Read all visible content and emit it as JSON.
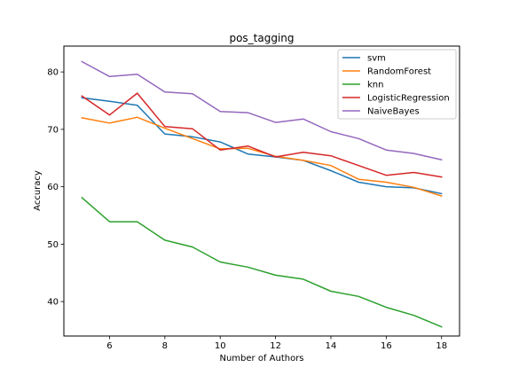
{
  "chart_data": {
    "type": "line",
    "title": "pos_tagging",
    "xlabel": "Number of Authors",
    "ylabel": "Accuracy",
    "xlim": [
      4.35,
      18.65
    ],
    "ylim": [
      34.0,
      84.5
    ],
    "xticks": [
      6,
      8,
      10,
      12,
      14,
      16,
      18
    ],
    "yticks": [
      40,
      50,
      60,
      70,
      80
    ],
    "grid": false,
    "legend_position": "top-right",
    "x": [
      5,
      6,
      7,
      8,
      9,
      10,
      11,
      12,
      13,
      14,
      15,
      16,
      17,
      18
    ],
    "series": [
      {
        "name": "svm",
        "color": "#1f77b4",
        "values": [
          75.5,
          74.9,
          74.2,
          69.2,
          68.7,
          67.8,
          65.7,
          65.2,
          64.6,
          62.8,
          60.8,
          60.0,
          59.8,
          58.8
        ]
      },
      {
        "name": "RandomForest",
        "color": "#ff7f0e",
        "values": [
          72.0,
          71.1,
          72.1,
          70.2,
          68.4,
          66.6,
          66.7,
          65.3,
          64.6,
          63.7,
          61.3,
          60.8,
          59.9,
          58.4
        ]
      },
      {
        "name": "knn",
        "color": "#2ca02c",
        "values": [
          58.1,
          53.9,
          53.9,
          50.7,
          49.5,
          46.9,
          46.0,
          44.6,
          43.9,
          41.8,
          40.9,
          39.0,
          37.6,
          35.6
        ]
      },
      {
        "name": "LogisticRegression",
        "color": "#d62728",
        "values": [
          75.8,
          72.5,
          76.3,
          70.5,
          70.1,
          66.4,
          67.1,
          65.2,
          66.0,
          65.4,
          63.7,
          62.0,
          62.5,
          61.7
        ]
      },
      {
        "name": "NaiveBayes",
        "color": "#9467bd",
        "values": [
          81.8,
          79.2,
          79.6,
          76.5,
          76.2,
          73.1,
          72.9,
          71.2,
          71.8,
          69.6,
          68.4,
          66.4,
          65.8,
          64.7
        ]
      }
    ]
  }
}
